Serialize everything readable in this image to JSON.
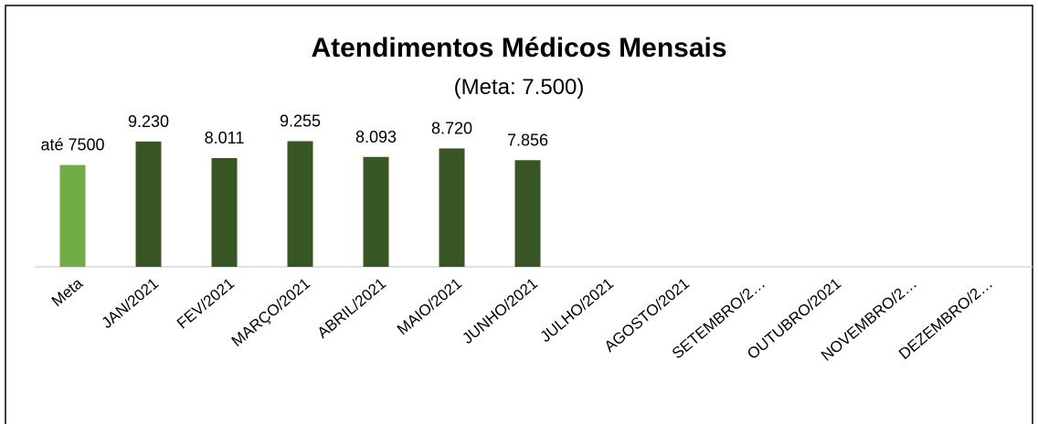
{
  "chart_data": {
    "type": "bar",
    "title": "Atendimentos Médicos Mensais",
    "subtitle": "(Meta: 7.500)",
    "categories": [
      "Meta",
      "JAN/2021",
      "FEV/2021",
      "MARÇO/2021",
      "ABRIL/2021",
      "MAIO/2021",
      "JUNHO/2021",
      "JULHO/2021",
      "AGOSTO/2021",
      "SETEMBRO/2…",
      "OUTUBRO/2021",
      "NOVEMBRO/2…",
      "DEZEMBRO/2…"
    ],
    "values": [
      7500,
      9230,
      8011,
      9255,
      8093,
      8720,
      7856,
      null,
      null,
      null,
      null,
      null,
      null
    ],
    "value_labels": [
      "até 7500",
      "9.230",
      "8.011",
      "9.255",
      "8.093",
      "8.720",
      "7.856",
      null,
      null,
      null,
      null,
      null,
      null
    ],
    "colors": [
      "#70ad47",
      "#375623",
      "#375623",
      "#375623",
      "#375623",
      "#375623",
      "#375623",
      null,
      null,
      null,
      null,
      null,
      null
    ],
    "ylim": [
      0,
      14000
    ]
  }
}
